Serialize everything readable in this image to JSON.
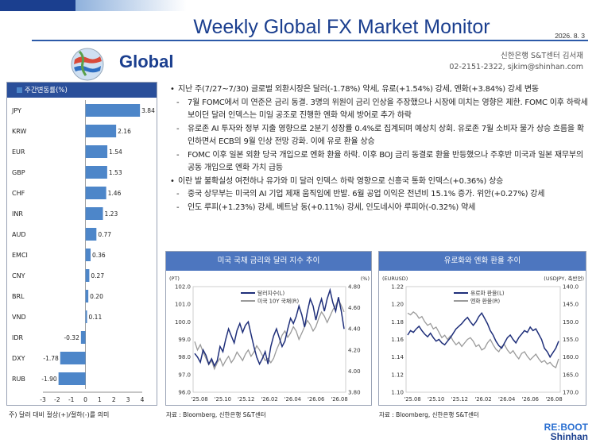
{
  "header": {
    "title": "Weekly Global FX Market Monitor",
    "date": "2026. 8. 3"
  },
  "section": {
    "title": "Global"
  },
  "author": {
    "line1": "신한은행 S&T센터 김서재",
    "line2": "02-2151-2322, sjkim@shinhan.com"
  },
  "colors": {
    "brand_blue": "#1b3f8f",
    "bar_blue": "#4d86c9",
    "header_blue": "#4d76bf",
    "series_gray": "#9a9a9a",
    "series_navy": "#1f2f7a"
  },
  "bullets": [
    {
      "kind": "main",
      "text": "지난 주(7/27~7/30) 글로벌 외환시장은 달러(-1.78%) 약세, 유로(+1.54%) 강세, 엔화(+3.84%) 강세 변동"
    },
    {
      "kind": "sub",
      "text": "7월 FOMC에서 미 연준은 금리 동결. 3명의 위원이 금리 인상을 주장했으나 시장에 미치는 영향은 제한. FOMC 이후 하락세 보이던 달러 인덱스는 미일 공조로 진행한 엔화 약세 방어로 추가 하락"
    },
    {
      "kind": "sub",
      "text": "유로존 AI 투자와 정부 지출 영향으로 2분기 성장률 0.4%로 집계되며 예상치 상회. 유로존 7월 소비자 물가 상승 흐름을 확인하면서 ECB의 9월 인상 전망 강화. 이에 유로 환율 상승"
    },
    {
      "kind": "sub",
      "text": "FOMC 이후 일본 외환 당국 개입으로 엔화 환율 하락. 이후 BOJ 금리 동결로 환율 반등했으나 주후반 미국과 일본 재무부의 공동 개입으로 엔화 가치 급등"
    },
    {
      "kind": "main",
      "text": "이란 발 불확실성 여전하나 유가와 미 달러 인덱스 하락 영향으로 신흥국 통화 인덱스(+0.36%) 상승"
    },
    {
      "kind": "sub",
      "text": "중국 상무부는 미국의 AI 기업 제재 움직임에 반발. 6월 공업 이익은 전년비 15.1% 증가.  위안(+0.27%) 강세"
    },
    {
      "kind": "sub",
      "text": "인도 루피(+1.23%) 강세, 베트남 동(+0.11%) 강세, 인도네시아 루피아(-0.32%) 약세"
    }
  ],
  "bar_chart": {
    "legend": "주간변동률(%)",
    "type": "bar",
    "categories": [
      "JPY",
      "KRW",
      "EUR",
      "GBP",
      "CHF",
      "INR",
      "AUD",
      "EMCI",
      "CNY",
      "BRL",
      "VND",
      "IDR",
      "DXY",
      "RUB"
    ],
    "values": [
      3.84,
      2.16,
      1.54,
      1.53,
      1.46,
      1.23,
      0.77,
      0.36,
      0.27,
      0.2,
      0.11,
      -0.32,
      -1.78,
      -1.9
    ],
    "value_labels": [
      "3.84",
      "2.16",
      "1.54",
      "1.53",
      "1.46",
      "1.23",
      "0.77",
      "0.36",
      "0.27",
      "0.20",
      "0.11",
      "-0.32",
      "-1.78",
      "-1.90"
    ],
    "xlim": [
      -3,
      4
    ],
    "xticks": [
      "-3",
      "-2",
      "-1",
      "0",
      "1",
      "2",
      "3",
      "4"
    ],
    "footnote": "주) 달러 대비 절상(+)/절하(-)를 의미"
  },
  "chart_data": [
    {
      "type": "line",
      "title": "미국 국채 금리와 달러 지수 추이",
      "left_unit": "(PT)",
      "right_unit": "(%)",
      "x_ticks": [
        "'25.08",
        "'25.10",
        "'25.12",
        "'26.02",
        "'26.04",
        "'26.06",
        "'26.08"
      ],
      "left_ticks": [
        "102.0",
        "101.0",
        "100.0",
        "99.0",
        "98.0",
        "97.0",
        "96.0"
      ],
      "right_ticks": [
        "4.80",
        "4.60",
        "4.40",
        "4.20",
        "4.00",
        "3.80"
      ],
      "ylim_left": [
        96.0,
        102.0
      ],
      "ylim_right": [
        3.8,
        4.8
      ],
      "series": [
        {
          "name": "달러지수(L)",
          "axis": "left",
          "color": "#1f2f7a",
          "values": [
            98.2,
            98.0,
            97.7,
            98.4,
            98.1,
            97.6,
            97.9,
            97.5,
            97.8,
            98.6,
            98.3,
            99.0,
            99.6,
            99.2,
            98.8,
            99.5,
            99.9,
            99.4,
            99.8,
            100.0,
            99.3,
            98.6,
            98.0,
            97.6,
            97.9,
            98.3,
            97.6,
            98.6,
            99.2,
            99.6,
            99.1,
            98.6,
            98.9,
            99.6,
            100.2,
            99.9,
            100.3,
            100.9,
            100.4,
            99.7,
            100.6,
            101.3,
            100.9,
            100.1,
            100.8,
            101.3,
            100.6,
            101.3,
            101.8,
            101.1,
            100.6,
            101.4,
            100.6,
            99.6
          ]
        },
        {
          "name": "미국 10Y 국채(R)",
          "axis": "right",
          "color": "#9a9a9a",
          "values": [
            4.28,
            4.2,
            4.25,
            4.18,
            4.12,
            4.06,
            4.1,
            4.02,
            4.08,
            4.12,
            4.05,
            4.1,
            4.14,
            4.08,
            4.12,
            4.18,
            4.14,
            4.1,
            4.16,
            4.2,
            4.14,
            4.18,
            4.24,
            4.2,
            4.15,
            4.1,
            4.12,
            4.08,
            4.12,
            4.2,
            4.26,
            4.34,
            4.38,
            4.32,
            4.36,
            4.42,
            4.38,
            4.3,
            4.36,
            4.42,
            4.48,
            4.44,
            4.38,
            4.42,
            4.5,
            4.56,
            4.52,
            4.46,
            4.52,
            4.58,
            4.62,
            4.68,
            4.62,
            4.56
          ]
        }
      ]
    },
    {
      "type": "line",
      "title": "유로화와 엔화 환율 추이",
      "left_unit": "(EURUSD)",
      "right_unit": "(USDJPY, 축반전)",
      "x_ticks": [
        "'25.08",
        "'25.10",
        "'25.12",
        "'26.02",
        "'26.04",
        "'26.06",
        "'26.08"
      ],
      "left_ticks": [
        "1.22",
        "1.20",
        "1.18",
        "1.16",
        "1.14",
        "1.12",
        "1.10"
      ],
      "right_ticks": [
        "140.0",
        "145.0",
        "150.0",
        "155.0",
        "160.0",
        "165.0",
        "170.0"
      ],
      "ylim_left": [
        1.1,
        1.22
      ],
      "ylim_right_inverted": [
        140.0,
        170.0
      ],
      "series": [
        {
          "name": "유로화 환율(L)",
          "axis": "left",
          "color": "#1f2f7a",
          "values": [
            1.165,
            1.17,
            1.168,
            1.172,
            1.175,
            1.17,
            1.166,
            1.163,
            1.167,
            1.162,
            1.158,
            1.16,
            1.156,
            1.154,
            1.158,
            1.162,
            1.167,
            1.172,
            1.175,
            1.178,
            1.182,
            1.185,
            1.18,
            1.176,
            1.18,
            1.186,
            1.19,
            1.184,
            1.178,
            1.17,
            1.165,
            1.158,
            1.153,
            1.15,
            1.156,
            1.162,
            1.165,
            1.16,
            1.156,
            1.162,
            1.166,
            1.17,
            1.168,
            1.174,
            1.17,
            1.172,
            1.166,
            1.16,
            1.15,
            1.146,
            1.14,
            1.145,
            1.15,
            1.158
          ]
        },
        {
          "name": "엔화 환율(R)",
          "axis": "right",
          "color": "#9a9a9a",
          "values": [
            147.5,
            148.0,
            147.2,
            147.8,
            149.0,
            148.5,
            150.0,
            151.0,
            150.5,
            152.0,
            151.5,
            153.0,
            154.5,
            153.8,
            155.0,
            154.0,
            155.5,
            156.5,
            155.8,
            157.0,
            156.0,
            155.0,
            154.5,
            155.5,
            157.0,
            156.5,
            158.0,
            157.5,
            156.0,
            155.0,
            156.5,
            157.8,
            158.5,
            157.0,
            156.5,
            158.0,
            159.0,
            158.2,
            159.5,
            160.5,
            159.0,
            158.5,
            159.8,
            160.8,
            160.0,
            159.2,
            160.5,
            161.5,
            161.0,
            162.0,
            161.5,
            162.5,
            163.0,
            160.5
          ]
        }
      ]
    }
  ],
  "sources": {
    "left": "자료 : Bloomberg, 신한은행 S&T센터",
    "right": "자료 : Bloomberg, 신한은행 S&T센터"
  },
  "brand": {
    "line1": "RE:BOOT",
    "line2": "Shinhan"
  }
}
